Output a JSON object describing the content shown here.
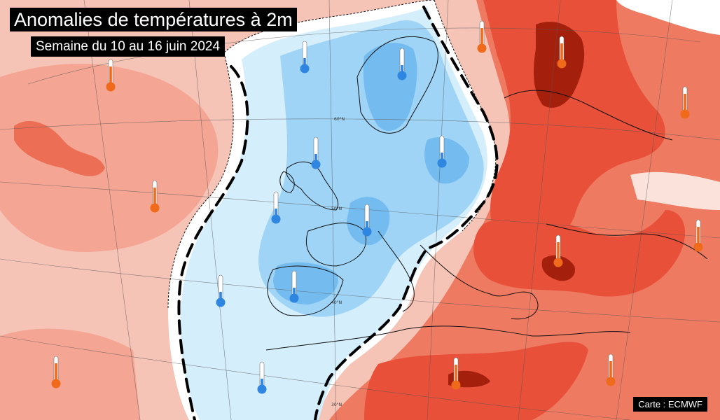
{
  "title": "Anomalies de températures à 2m",
  "subtitle": "Semaine du 10 au 16 juin 2024",
  "credit": "Carte : ECMWF",
  "lat_labels": [
    "60°N",
    "50°N",
    "40°N",
    "30°N"
  ],
  "colors": {
    "anomaly_strong_warm": "#a51f0d",
    "anomaly_warm": "#e8503a",
    "anomaly_mild_warm": "#f4907d",
    "anomaly_slight_warm": "#f6c4b6",
    "neutral": "#ffffff",
    "anomaly_slight_cold": "#d4eefc",
    "anomaly_cold": "#9fd4f6",
    "anomaly_mild_cold": "#74bbef",
    "warm_thermometer": "#ef6a1a",
    "cold_thermometer": "#2f86e0",
    "boundary_line": "#000000"
  },
  "thermometers": [
    {
      "kind": "warm",
      "name": "thermo-warm-north-atlantic"
    },
    {
      "kind": "warm",
      "name": "thermo-warm-mid-atlantic"
    },
    {
      "kind": "warm",
      "name": "thermo-warm-south-atlantic"
    },
    {
      "kind": "warm",
      "name": "thermo-warm-scandinavia-east"
    },
    {
      "kind": "warm",
      "name": "thermo-warm-russia"
    },
    {
      "kind": "warm",
      "name": "thermo-warm-far-east"
    },
    {
      "kind": "warm",
      "name": "thermo-warm-balkans"
    },
    {
      "kind": "warm",
      "name": "thermo-warm-anatolia"
    },
    {
      "kind": "warm",
      "name": "thermo-warm-north-africa"
    },
    {
      "kind": "warm",
      "name": "thermo-warm-egypt"
    },
    {
      "kind": "cold",
      "name": "thermo-cold-north-sea"
    },
    {
      "kind": "cold",
      "name": "thermo-cold-scandinavia"
    },
    {
      "kind": "cold",
      "name": "thermo-cold-ireland"
    },
    {
      "kind": "cold",
      "name": "thermo-cold-poland"
    },
    {
      "kind": "cold",
      "name": "thermo-cold-bay-of-biscay"
    },
    {
      "kind": "cold",
      "name": "thermo-cold-france"
    },
    {
      "kind": "cold",
      "name": "thermo-cold-spain"
    },
    {
      "kind": "cold",
      "name": "thermo-cold-atlantic-iberia"
    },
    {
      "kind": "cold",
      "name": "thermo-cold-morocco"
    }
  ]
}
